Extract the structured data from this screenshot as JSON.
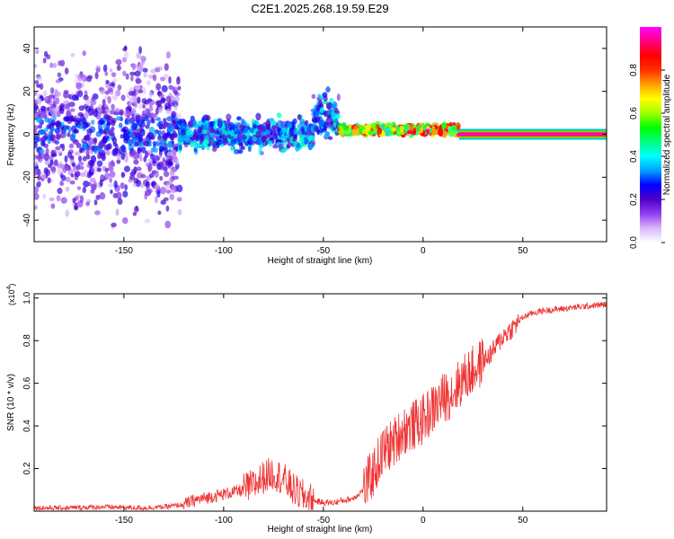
{
  "title": "C2E1.2025.268.19.59.E29",
  "chart_data": [
    {
      "type": "heatmap",
      "name": "spectrogram",
      "xlabel": "Height of straight line (km)",
      "ylabel": "Frequency (Hz)",
      "xlim": [
        -195,
        92
      ],
      "ylim": [
        -50,
        50
      ],
      "xticks": [
        -150,
        -100,
        -50,
        0,
        50
      ],
      "yticks": [
        -40,
        -20,
        0,
        20,
        40
      ],
      "colorbar": {
        "label": "Normalized spectral amplitude",
        "range": [
          0,
          1
        ],
        "ticks": [
          0.0,
          0.2,
          0.4,
          0.6,
          0.8
        ],
        "colors": [
          "#ffffff",
          "#d8b8f8",
          "#9040f0",
          "#5000c8",
          "#0000ff",
          "#00a0ff",
          "#00ffff",
          "#00ff80",
          "#00ff00",
          "#a0ff00",
          "#ffff00",
          "#ffa000",
          "#ff3000",
          "#ff0000",
          "#ff0080",
          "#ff00ff"
        ]
      },
      "regions": [
        {
          "x": [
            -195,
            -122
          ],
          "freq_center": 0,
          "freq_spread": 50,
          "amplitude": [
            0.05,
            0.25
          ],
          "note": "scattered noise"
        },
        {
          "x": [
            -122,
            -55
          ],
          "freq_center": 0,
          "freq_spread": 10,
          "amplitude": [
            0.15,
            0.45
          ],
          "note": "broadband band"
        },
        {
          "x": [
            -55,
            -42
          ],
          "freq_center": 8,
          "freq_spread": 14,
          "amplitude": [
            0.15,
            0.45
          ]
        },
        {
          "x": [
            -42,
            18
          ],
          "freq_center": 2,
          "freq_spread": 3,
          "amplitude": [
            0.4,
            0.95
          ]
        },
        {
          "x": [
            18,
            92
          ],
          "freq_center": 0,
          "freq_spread": 1,
          "amplitude": [
            0.95,
            1.0
          ],
          "note": "steady carrier line"
        }
      ]
    },
    {
      "type": "line",
      "name": "snr",
      "xlabel": "Height of straight line (km)",
      "ylabel": "SNR (10 * v/v)",
      "scale_label": "(x10",
      "scale_exp": "4",
      "scale_close": ")",
      "xlim": [
        -195,
        92
      ],
      "ylim": [
        0,
        1.02
      ],
      "xticks": [
        -150,
        -100,
        -50,
        0,
        50
      ],
      "yticks": [
        0.2,
        0.4,
        0.6,
        0.8,
        1.0
      ],
      "series": [
        {
          "name": "SNR",
          "color": "#ee3333",
          "x": [
            -195,
            -180,
            -160,
            -140,
            -130,
            -120,
            -115,
            -110,
            -100,
            -95,
            -90,
            -85,
            -80,
            -75,
            -70,
            -65,
            -60,
            -55,
            -50,
            -45,
            -40,
            -35,
            -30,
            -25,
            -20,
            -15,
            -10,
            -5,
            0,
            5,
            10,
            15,
            20,
            25,
            30,
            35,
            40,
            45,
            50,
            55,
            60,
            70,
            80,
            92
          ],
          "y": [
            0.015,
            0.015,
            0.02,
            0.015,
            0.02,
            0.03,
            0.05,
            0.06,
            0.08,
            0.09,
            0.1,
            0.12,
            0.16,
            0.18,
            0.15,
            0.1,
            0.07,
            0.05,
            0.04,
            0.04,
            0.05,
            0.06,
            0.1,
            0.18,
            0.28,
            0.32,
            0.38,
            0.4,
            0.43,
            0.48,
            0.53,
            0.56,
            0.62,
            0.66,
            0.7,
            0.75,
            0.82,
            0.86,
            0.91,
            0.93,
            0.94,
            0.95,
            0.96,
            0.97
          ]
        }
      ]
    }
  ]
}
